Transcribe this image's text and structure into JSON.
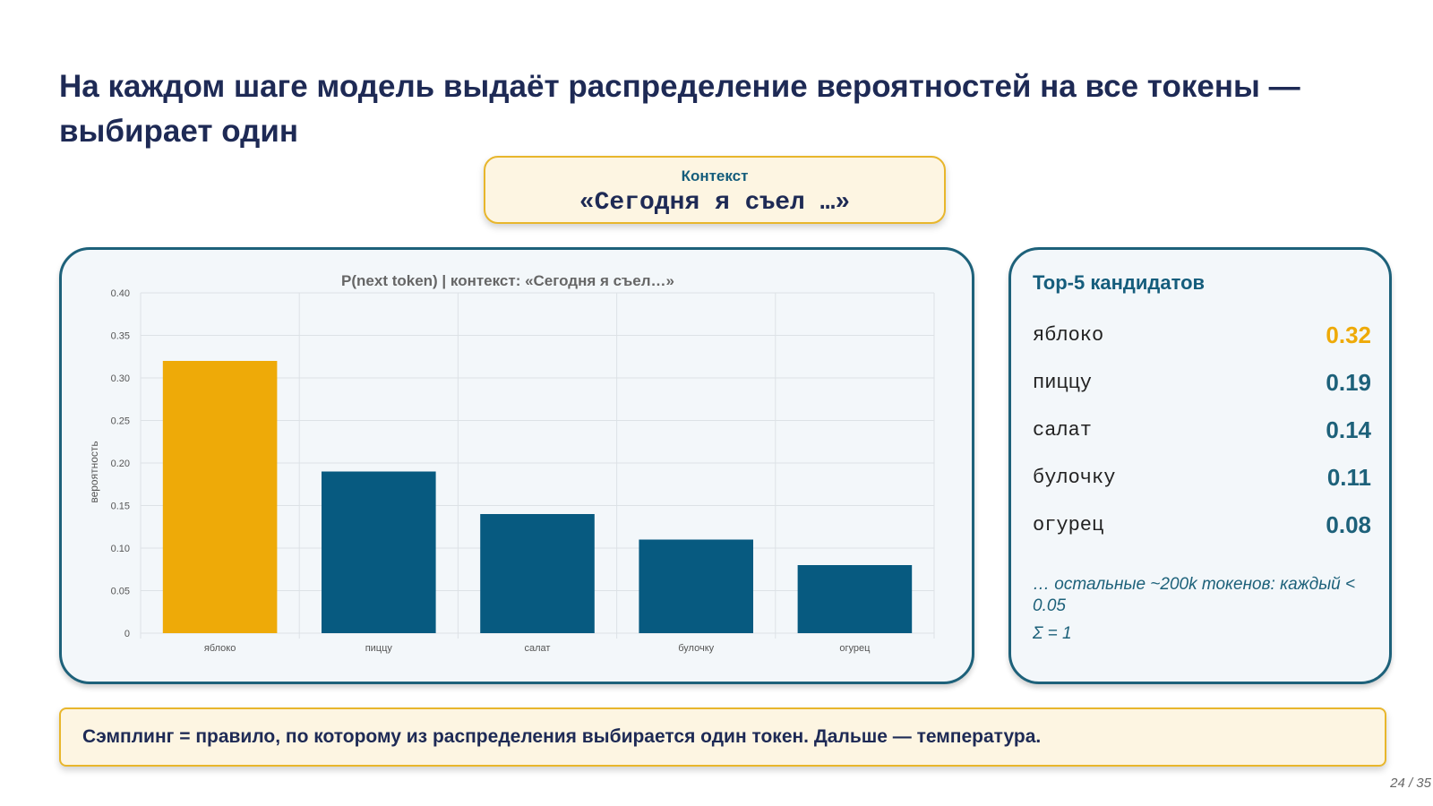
{
  "slide": {
    "title": "На каждом шаге модель выдаёт распределение вероятностей на все токены — выбирает один",
    "page_number": "24 / 35"
  },
  "context": {
    "label": "Контекст",
    "text": "«Сегодня я съел …»"
  },
  "chart_data": {
    "type": "bar",
    "title": "P(next token) | контекст: «Сегодня я съел…»",
    "xlabel": "",
    "ylabel": "вероятность",
    "categories": [
      "яблоко",
      "пиццу",
      "салат",
      "булочку",
      "огурец"
    ],
    "values": [
      0.32,
      0.19,
      0.14,
      0.11,
      0.08
    ],
    "ylim": [
      0,
      0.4
    ],
    "yticks": [
      "0",
      "0.05",
      "0.10",
      "0.15",
      "0.20",
      "0.25",
      "0.30",
      "0.35",
      "0.40"
    ],
    "grid": true,
    "colors": {
      "highlight": "#eeaa08",
      "default": "#075a80"
    }
  },
  "top_candidates": {
    "title": "Top-5 кандидатов",
    "items": [
      {
        "token": "яблоко",
        "prob": "0.32"
      },
      {
        "token": "пиццу",
        "prob": "0.19"
      },
      {
        "token": "салат",
        "prob": "0.14"
      },
      {
        "token": "булочку",
        "prob": "0.11"
      },
      {
        "token": "огурец",
        "prob": "0.08"
      }
    ],
    "rest_note": "… остальные ~200k токенов: каждый < 0.05",
    "sum_note": "Σ = 1"
  },
  "footer": {
    "text": "Сэмплинг = правило, по которому из распределения выбирается один токен. Дальше — температура."
  }
}
